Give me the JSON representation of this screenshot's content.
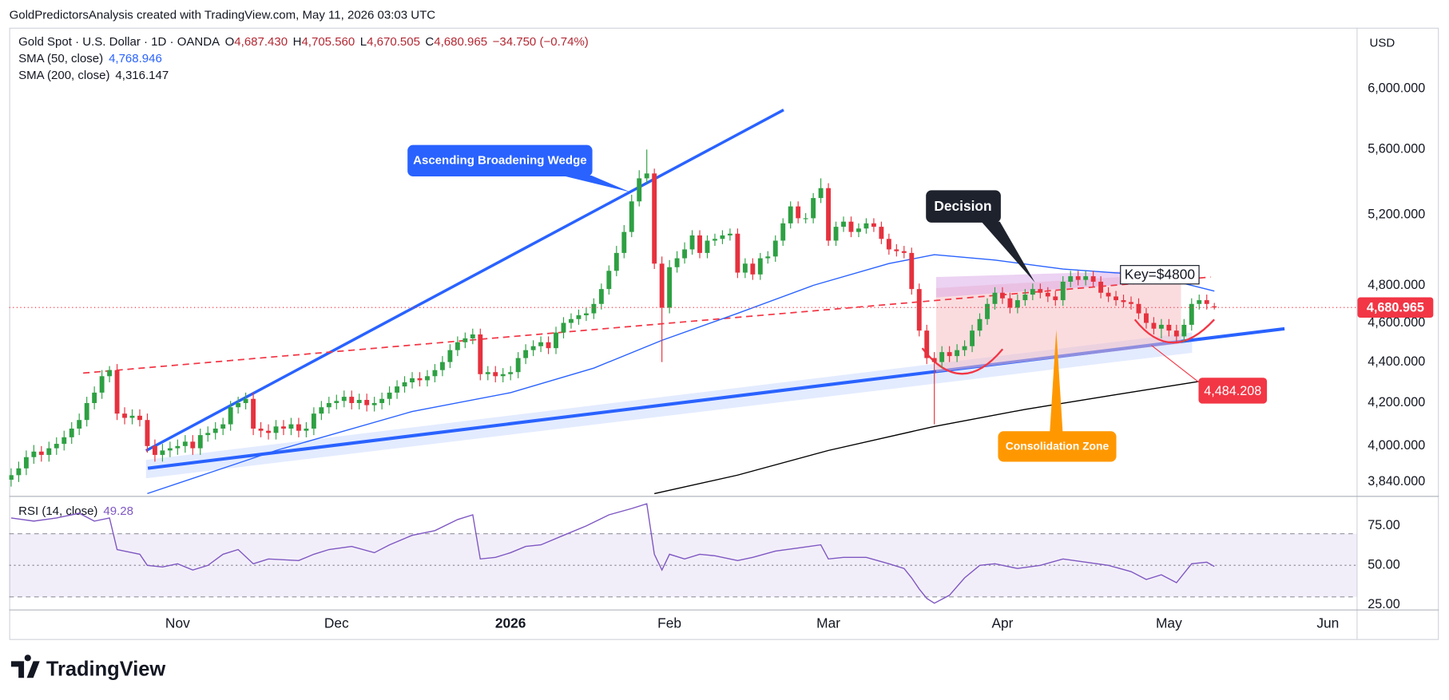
{
  "header": {
    "caption": "GoldPredictorsAnalysis created with TradingView.com, May 11, 2026 03:03 UTC",
    "logo": "TradingView"
  },
  "chart_data": {
    "type": "candlestick",
    "symbol": "Gold Spot · U.S. Dollar · 1D · OANDA",
    "ohlc_legend": [
      {
        "key": "O",
        "value": "4,687.430"
      },
      {
        "key": "H",
        "value": "4,705.560"
      },
      {
        "key": "L",
        "value": "4,670.505"
      },
      {
        "key": "C",
        "value": "4,680.965"
      }
    ],
    "change": "−34.750 (−0.74%)",
    "currency": "USD",
    "up_color": "#2ea043",
    "down_color": "#e5323e",
    "open": [
      3850,
      3870,
      3900,
      3950,
      3975,
      3960,
      3990,
      4010,
      4040,
      4080,
      4120,
      4200,
      4250,
      4330,
      4360,
      4150,
      4130,
      4140,
      4120,
      4000,
      3960,
      3980,
      3990,
      4000,
      4020,
      3990,
      4050,
      4060,
      4080,
      4100,
      4180,
      4200,
      4220,
      4080,
      4070,
      4060,
      4090,
      4080,
      4100,
      4070,
      4080,
      4150,
      4180,
      4200,
      4210,
      4230,
      4200,
      4215,
      4190,
      4200,
      4220,
      4250,
      4280,
      4300,
      4320,
      4310,
      4330,
      4360,
      4400,
      4460,
      4500,
      4520,
      4540,
      4340,
      4350,
      4330,
      4340,
      4350,
      4420,
      4460,
      4480,
      4500,
      4470,
      4550,
      4600,
      4620,
      4640,
      4650,
      4700,
      4780,
      4880,
      4980,
      5100,
      5280,
      5420,
      5450,
      4920,
      4680,
      4900,
      4950,
      5000,
      5080,
      4980,
      5050,
      5060,
      5080,
      5090,
      4870,
      4920,
      4860,
      4950,
      4960,
      5050,
      5150,
      5250,
      5180,
      5180,
      5300,
      5360,
      5050,
      5130,
      5160,
      5100,
      5120,
      5150,
      5130,
      5060,
      5000,
      4990,
      4980,
      4780,
      4560,
      4420,
      4400,
      4450,
      4430,
      4460,
      4480,
      4560,
      4620,
      4700,
      4760,
      4730,
      4680,
      4720,
      4750,
      4780,
      4760,
      4740,
      4720,
      4820,
      4850,
      4830,
      4850,
      4820,
      4760,
      4740,
      4720,
      4710,
      4700,
      4650,
      4600,
      4570,
      4590,
      4560,
      4530,
      4590,
      4700,
      4720,
      4687.43
    ],
    "high": [
      3900,
      3930,
      3980,
      4005,
      4000,
      4020,
      4040,
      4070,
      4110,
      4150,
      4230,
      4280,
      4360,
      4380,
      4390,
      4180,
      4170,
      4170,
      4150,
      4030,
      4010,
      4020,
      4030,
      4050,
      4050,
      4080,
      4090,
      4110,
      4130,
      4210,
      4230,
      4250,
      4250,
      4110,
      4100,
      4120,
      4120,
      4130,
      4130,
      4110,
      4180,
      4210,
      4230,
      4240,
      4260,
      4260,
      4245,
      4245,
      4230,
      4250,
      4280,
      4310,
      4330,
      4350,
      4350,
      4360,
      4390,
      4430,
      4490,
      4530,
      4550,
      4570,
      4570,
      4380,
      4380,
      4370,
      4380,
      4450,
      4490,
      4510,
      4530,
      4530,
      4580,
      4630,
      4650,
      4670,
      4680,
      4730,
      4810,
      4910,
      5020,
      5140,
      5320,
      5470,
      5600,
      5480,
      4960,
      4940,
      4990,
      5040,
      5110,
      5110,
      5080,
      5090,
      5110,
      5120,
      5120,
      4950,
      4950,
      4980,
      4990,
      5080,
      5180,
      5280,
      5280,
      5210,
      5330,
      5420,
      5390,
      5160,
      5190,
      5190,
      5150,
      5180,
      5180,
      5160,
      5090,
      5030,
      5020,
      5010,
      4810,
      4590,
      4450,
      4480,
      4480,
      4490,
      4510,
      4590,
      4650,
      4730,
      4790,
      4790,
      4760,
      4750,
      4780,
      4810,
      4810,
      4790,
      4770,
      4850,
      4880,
      4880,
      4880,
      4880,
      4850,
      4790,
      4770,
      4750,
      4740,
      4730,
      4680,
      4630,
      4620,
      4620,
      4590,
      4620,
      4730,
      4750,
      4750,
      4705.56
    ],
    "low": [
      3820,
      3840,
      3870,
      3920,
      3930,
      3930,
      3960,
      3980,
      4010,
      4050,
      4090,
      4170,
      4220,
      4300,
      4120,
      4100,
      4100,
      4090,
      3970,
      3930,
      3930,
      3950,
      3960,
      3970,
      3960,
      3960,
      4020,
      4030,
      4050,
      4070,
      4150,
      4170,
      4050,
      4040,
      4030,
      4030,
      4050,
      4050,
      4040,
      4040,
      4050,
      4120,
      4150,
      4170,
      4180,
      4170,
      4170,
      4160,
      4160,
      4170,
      4190,
      4220,
      4250,
      4270,
      4280,
      4280,
      4300,
      4330,
      4370,
      4430,
      4470,
      4490,
      4310,
      4310,
      4300,
      4300,
      4310,
      4320,
      4390,
      4430,
      4450,
      4440,
      4440,
      4520,
      4570,
      4590,
      4610,
      4620,
      4670,
      4750,
      4850,
      4950,
      5070,
      5250,
      5390,
      4890,
      4400,
      4650,
      4870,
      4920,
      4970,
      4950,
      4950,
      5020,
      5030,
      5050,
      4840,
      4840,
      4830,
      4830,
      4920,
      4930,
      5020,
      5120,
      5150,
      5150,
      5150,
      5270,
      5020,
      5020,
      5100,
      5070,
      5070,
      5090,
      5100,
      5030,
      4970,
      4960,
      4950,
      4750,
      4530,
      4390,
      4100,
      4370,
      4400,
      4400,
      4430,
      4450,
      4530,
      4590,
      4670,
      4700,
      4650,
      4650,
      4690,
      4720,
      4730,
      4710,
      4690,
      4690,
      4790,
      4800,
      4800,
      4790,
      4730,
      4710,
      4690,
      4680,
      4670,
      4620,
      4570,
      4540,
      4520,
      4530,
      4500,
      4500,
      4560,
      4670,
      4670,
      4670.505
    ],
    "close": [
      3870,
      3900,
      3950,
      3975,
      3960,
      3990,
      4010,
      4040,
      4080,
      4120,
      4200,
      4250,
      4330,
      4360,
      4150,
      4130,
      4140,
      4120,
      4000,
      3960,
      3980,
      3990,
      4000,
      4020,
      3990,
      4050,
      4060,
      4080,
      4100,
      4180,
      4200,
      4220,
      4080,
      4070,
      4060,
      4090,
      4080,
      4100,
      4070,
      4080,
      4150,
      4180,
      4200,
      4210,
      4230,
      4200,
      4215,
      4190,
      4200,
      4220,
      4250,
      4280,
      4300,
      4320,
      4310,
      4330,
      4360,
      4400,
      4460,
      4500,
      4520,
      4540,
      4340,
      4350,
      4330,
      4340,
      4350,
      4420,
      4460,
      4480,
      4500,
      4470,
      4550,
      4600,
      4620,
      4640,
      4650,
      4700,
      4780,
      4880,
      4980,
      5100,
      5280,
      5420,
      5450,
      4920,
      4680,
      4900,
      4950,
      5000,
      5080,
      4980,
      5050,
      5060,
      5080,
      5090,
      4870,
      4920,
      4860,
      4950,
      4960,
      5050,
      5150,
      5250,
      5180,
      5180,
      5300,
      5360,
      5050,
      5130,
      5160,
      5100,
      5120,
      5150,
      5130,
      5060,
      5000,
      4990,
      4980,
      4780,
      4560,
      4420,
      4400,
      4450,
      4430,
      4460,
      4480,
      4560,
      4620,
      4700,
      4760,
      4730,
      4680,
      4720,
      4750,
      4780,
      4760,
      4740,
      4720,
      4820,
      4850,
      4830,
      4850,
      4820,
      4760,
      4740,
      4720,
      4710,
      4700,
      4650,
      4600,
      4570,
      4590,
      4560,
      4530,
      4590,
      4700,
      4720,
      4700,
      4680.965
    ],
    "xlim": [
      -0.25,
      177.8
    ],
    "xticks": [
      {
        "value": 22,
        "label": "Nov"
      },
      {
        "value": 43,
        "label": "Dec"
      },
      {
        "value": 66,
        "label": "2026"
      },
      {
        "value": 87,
        "label": "Feb"
      },
      {
        "value": 108,
        "label": "Mar"
      },
      {
        "value": 131,
        "label": "Apr"
      },
      {
        "value": 153,
        "label": "May"
      },
      {
        "value": 174,
        "label": "Jun"
      }
    ],
    "log_scale": true,
    "ylim": [
      3780,
      6430
    ],
    "yticks": [
      {
        "value": 3840,
        "label": "3,840.000"
      },
      {
        "value": 4000,
        "label": "4,000.000"
      },
      {
        "value": 4200,
        "label": "4,200.000"
      },
      {
        "value": 4400,
        "label": "4,400.000"
      },
      {
        "value": 4600,
        "label": "4,600.000"
      },
      {
        "value": 4800,
        "label": "4,800.000"
      },
      {
        "value": 5200,
        "label": "5,200.000"
      },
      {
        "value": 5600,
        "label": "5,600.000"
      },
      {
        "value": 6000,
        "label": "6,000.000"
      }
    ],
    "overlays": [
      {
        "name": "SMA (50, close)",
        "last_label": "4,768.946",
        "color": "#2962ff",
        "x": [
          18,
          35,
          53,
          66,
          77,
          86,
          96,
          106,
          116,
          122,
          130,
          139,
          149,
          155,
          159
        ],
        "values": [
          3790,
          3980,
          4160,
          4250,
          4370,
          4510,
          4650,
          4800,
          4920,
          4970,
          4940,
          4890,
          4860,
          4810,
          4768.946
        ]
      },
      {
        "name": "SMA (200, close)",
        "last_label": "4,316.147",
        "color": "#000000",
        "x": [
          85,
          96,
          108,
          122,
          134,
          146,
          159
        ],
        "values": [
          3790,
          3870,
          3980,
          4090,
          4170,
          4240,
          4316.147
        ]
      }
    ],
    "last_price": {
      "value": 4680.965,
      "label": "4,680.965"
    },
    "annotations": {
      "wedge": "Ascending Broadening Wedge",
      "decision": "Decision",
      "key": "Key=$4800",
      "zone": "Consolidation Zone",
      "marker": {
        "value": 4484.208,
        "label": "4,484.208"
      }
    },
    "rsi": {
      "name": "RSI (14, close)",
      "last_label": "49.28",
      "color": "#7e57c2",
      "ylim": [
        22,
        94
      ],
      "yticks": [
        {
          "value": 25,
          "label": "25.00"
        },
        {
          "value": 50,
          "label": "50.00"
        },
        {
          "value": 75,
          "label": "75.00"
        }
      ],
      "levels": [
        30,
        50,
        70
      ],
      "x": [
        0,
        3,
        6,
        9,
        11,
        13,
        14,
        17,
        18,
        20,
        22,
        24,
        26,
        28,
        30,
        32,
        34,
        38,
        40,
        42,
        45,
        48,
        50,
        53,
        56,
        59,
        61,
        62,
        64,
        66,
        68,
        70,
        73,
        76,
        79,
        82,
        84,
        85,
        86,
        87,
        89,
        91,
        93,
        96,
        98,
        101,
        104,
        107,
        108,
        110,
        113,
        116,
        118,
        119,
        120,
        121,
        122,
        124,
        126,
        128,
        130,
        133,
        136,
        139,
        142,
        145,
        148,
        150,
        152,
        154,
        156,
        158,
        159
      ],
      "values": [
        80,
        78,
        80,
        83,
        78,
        80,
        60,
        57,
        50,
        49,
        51,
        47,
        50,
        57,
        60,
        51,
        54,
        53,
        57,
        60,
        62,
        58,
        63,
        69,
        72,
        79,
        82,
        54,
        55,
        58,
        62,
        63,
        69,
        75,
        82,
        86,
        89,
        57,
        47,
        57,
        54,
        57,
        56,
        53,
        55,
        59,
        61,
        63,
        54,
        55,
        55,
        51,
        48,
        42,
        35,
        29,
        26,
        31,
        42,
        50,
        51,
        48,
        50,
        54,
        52,
        50,
        46,
        41,
        44,
        39,
        51,
        52,
        49.28
      ]
    }
  }
}
